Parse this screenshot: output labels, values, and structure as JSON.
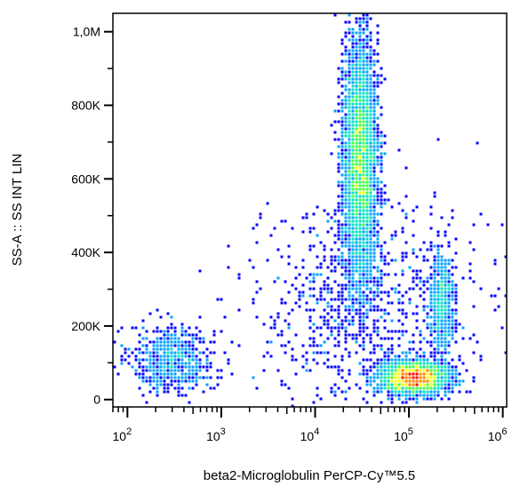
{
  "chart_data": {
    "type": "scatter",
    "title": "",
    "xlabel": "beta2-Microglobulin PerCP-Cy™5.5",
    "ylabel": "SS-A :: SS INT LIN",
    "x_scale": "log",
    "y_scale": "linear",
    "xlim": [
      70,
      1100000
    ],
    "ylim": [
      -20000,
      1050000
    ],
    "x_ticks": [
      {
        "value": 100,
        "base": "10",
        "exp": "2"
      },
      {
        "value": 1000,
        "base": "10",
        "exp": "3"
      },
      {
        "value": 10000,
        "base": "10",
        "exp": "4"
      },
      {
        "value": 100000,
        "base": "10",
        "exp": "5"
      },
      {
        "value": 1000000,
        "base": "10",
        "exp": "6"
      }
    ],
    "y_ticks": [
      {
        "value": 0,
        "label": "0"
      },
      {
        "value": 200000,
        "label": "200K"
      },
      {
        "value": 400000,
        "label": "400K"
      },
      {
        "value": 600000,
        "label": "600K"
      },
      {
        "value": 800000,
        "label": "800K"
      },
      {
        "value": 1000000,
        "label": "1,0M"
      }
    ],
    "density_colormap": [
      "#0000ff",
      "#00a0ff",
      "#00e0c0",
      "#40ff40",
      "#ffff00",
      "#ff8000",
      "#ff0000"
    ],
    "populations": [
      {
        "x_center": 300,
        "y_center": 110000,
        "x_spread_decades": 0.22,
        "y_spread": 45000,
        "points": 700
      },
      {
        "x_center": 30000,
        "y_center": 650000,
        "x_spread_decades": 0.09,
        "y_spread": 160000,
        "points": 4200
      },
      {
        "x_center": 110000,
        "y_center": 60000,
        "x_spread_decades": 0.18,
        "y_spread": 22000,
        "points": 2800
      },
      {
        "x_center": 220000,
        "y_center": 260000,
        "x_spread_decades": 0.07,
        "y_spread": 70000,
        "points": 600
      },
      {
        "x_center": 30000,
        "y_center": 250000,
        "x_spread_decades": 0.6,
        "y_spread": 150000,
        "points": 900
      }
    ],
    "grid": false,
    "legend": "none"
  }
}
